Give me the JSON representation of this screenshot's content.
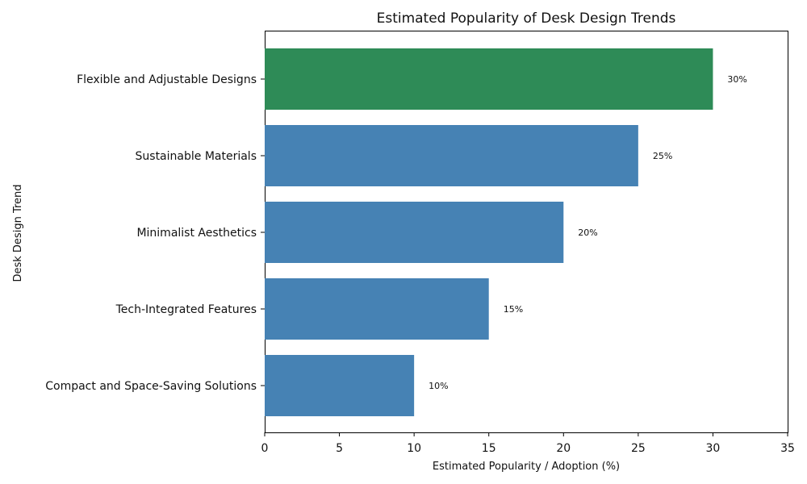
{
  "chart_data": {
    "type": "bar",
    "orientation": "horizontal",
    "title": "Estimated Popularity of Desk Design Trends",
    "xlabel": "Estimated Popularity / Adoption (%)",
    "ylabel": "Desk Design Trend",
    "xlim": [
      0,
      35
    ],
    "xticks": [
      0,
      5,
      10,
      15,
      20,
      25,
      30,
      35
    ],
    "grid": false,
    "categories": [
      "Flexible and Adjustable Designs",
      "Sustainable Materials",
      "Minimalist Aesthetics",
      "Tech-Integrated Features",
      "Compact and Space-Saving Solutions"
    ],
    "values": [
      30,
      25,
      20,
      15,
      10
    ],
    "data_labels": [
      "30%",
      "25%",
      "20%",
      "15%",
      "10%"
    ],
    "colors": {
      "highlight": "#2e8b57",
      "default": "#4682b4"
    },
    "highlight_category": "Flexible and Adjustable Designs"
  }
}
